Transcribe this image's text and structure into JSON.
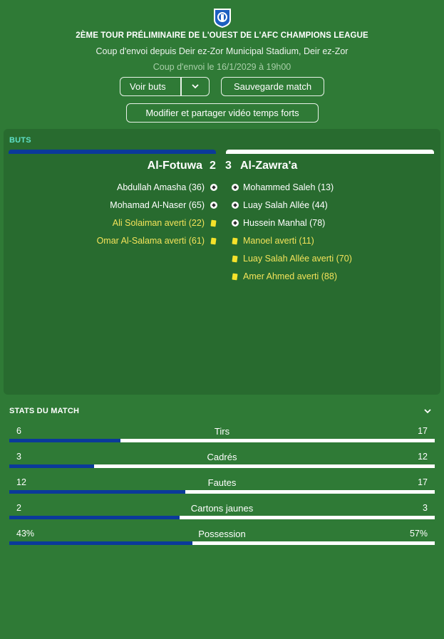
{
  "header": {
    "logo_icon": "afc-champions-league-logo",
    "competition_title": "2ÈME TOUR PRÉLIMINAIRE DE L'OUEST DE L'AFC CHAMPIONS LEAGUE",
    "venue_line": "Coup d'envoi depuis Deir ez-Zor Municipal Stadium, Deir ez-Zor",
    "kickoff_line": "Coup d'envoi le 16/1/2029 à 19h00"
  },
  "actions": {
    "view_goals_label": "Voir buts",
    "view_goals_dropdown_icon": "chevron-down-icon",
    "save_match_label": "Sauvegarde match",
    "edit_share_label": "Modifier et partager vidéo temps forts"
  },
  "goals_section": {
    "title": "BUTS",
    "home_team": "Al-Fotuwa",
    "home_score": "2",
    "away_score": "3",
    "away_team": "Al-Zawra'a",
    "home_color": "#0b3a9a",
    "away_color": "#ffffff",
    "home_events": [
      {
        "text": "Abdullah Amasha (36)",
        "type": "goal",
        "icon": "football-icon"
      },
      {
        "text": "Mohamad Al-Naser (65)",
        "type": "goal",
        "icon": "football-icon"
      },
      {
        "text": "Ali Solaiman averti (22)",
        "type": "yellow",
        "icon": "yellow-card-icon"
      },
      {
        "text": "Omar Al-Salama averti (61)",
        "type": "yellow",
        "icon": "yellow-card-icon"
      }
    ],
    "away_events": [
      {
        "text": "Mohammed Saleh (13)",
        "type": "goal",
        "icon": "football-icon"
      },
      {
        "text": "Luay Salah Allée (44)",
        "type": "goal",
        "icon": "football-icon"
      },
      {
        "text": "Hussein Manhal (78)",
        "type": "goal",
        "icon": "football-icon"
      },
      {
        "text": "Manoel averti (11)",
        "type": "yellow",
        "icon": "yellow-card-icon"
      },
      {
        "text": "Luay Salah Allée averti (70)",
        "type": "yellow",
        "icon": "yellow-card-icon"
      },
      {
        "text": "Amer Ahmed averti (88)",
        "type": "yellow",
        "icon": "yellow-card-icon"
      }
    ]
  },
  "stats_section": {
    "title": "STATS DU MATCH",
    "collapse_icon": "chevron-down-icon",
    "rows": [
      {
        "name": "Tirs",
        "home": "6",
        "away": "17",
        "home_share": 0.261
      },
      {
        "name": "Cadrés",
        "home": "3",
        "away": "12",
        "home_share": 0.2
      },
      {
        "name": "Fautes",
        "home": "12",
        "away": "17",
        "home_share": 0.414
      },
      {
        "name": "Cartons jaunes",
        "home": "2",
        "away": "3",
        "home_share": 0.4
      },
      {
        "name": "Possession",
        "home": "43%",
        "away": "57%",
        "home_share": 0.43
      }
    ]
  }
}
